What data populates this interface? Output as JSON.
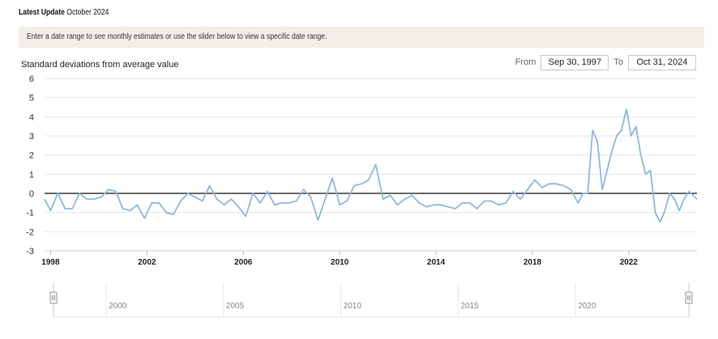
{
  "header": {
    "update_label": "Latest Update",
    "update_value": "October 2024",
    "notice": "Enter a date range to see monthly estimates or use the slider below to view a specific date range."
  },
  "range": {
    "from_label": "From",
    "from_value": "Sep 30, 1997",
    "to_label": "To",
    "to_value": "Oct 31, 2024"
  },
  "colors": {
    "line": "#8db8e3",
    "zero_line": "#111111",
    "grid": "#e6e6e6",
    "notice_bg": "#f2efe9"
  },
  "chart_data": {
    "type": "line",
    "ylabel": "Standard deviations from average value",
    "xlim": [
      1997.75,
      2024.83
    ],
    "ylim": [
      -3,
      6
    ],
    "yticks": [
      "-3",
      "-2",
      "-1",
      "0",
      "1",
      "2",
      "3",
      "4",
      "5",
      "6"
    ],
    "xticks": [
      {
        "value": 1998,
        "label": "1998"
      },
      {
        "value": 2002,
        "label": "2002"
      },
      {
        "value": 2006,
        "label": "2006"
      },
      {
        "value": 2010,
        "label": "2010"
      },
      {
        "value": 2014,
        "label": "2014"
      },
      {
        "value": 2018,
        "label": "2018"
      },
      {
        "value": 2022,
        "label": "2022"
      }
    ],
    "zero_line": 0,
    "grid": true,
    "series": [
      {
        "x": [
          1997.75,
          1998.0,
          1998.3,
          1998.6,
          1998.9,
          1999.2,
          1999.5,
          1999.8,
          2000.1,
          2000.4,
          2000.7,
          2001.0,
          2001.3,
          2001.6,
          2001.9,
          2002.2,
          2002.5,
          2002.8,
          2003.1,
          2003.4,
          2003.7,
          2004.0,
          2004.3,
          2004.6,
          2004.9,
          2005.2,
          2005.5,
          2005.8,
          2006.1,
          2006.4,
          2006.7,
          2007.0,
          2007.3,
          2007.6,
          2007.9,
          2008.2,
          2008.5,
          2008.8,
          2009.1,
          2009.4,
          2009.7,
          2010.0,
          2010.3,
          2010.6,
          2010.9,
          2011.2,
          2011.5,
          2011.8,
          2012.1,
          2012.4,
          2012.7,
          2013.0,
          2013.3,
          2013.6,
          2013.9,
          2014.2,
          2014.5,
          2014.8,
          2015.1,
          2015.4,
          2015.7,
          2016.0,
          2016.3,
          2016.6,
          2016.9,
          2017.2,
          2017.5,
          2017.8,
          2018.1,
          2018.4,
          2018.7,
          2019.0,
          2019.3,
          2019.6,
          2019.9,
          2020.1,
          2020.3,
          2020.5,
          2020.7,
          2020.9,
          2021.1,
          2021.3,
          2021.5,
          2021.7,
          2021.9,
          2022.1,
          2022.3,
          2022.5,
          2022.7,
          2022.9,
          2023.1,
          2023.3,
          2023.5,
          2023.7,
          2023.9,
          2024.1,
          2024.3,
          2024.5,
          2024.83
        ],
        "y": [
          -0.3,
          -0.9,
          0.0,
          -0.8,
          -0.8,
          0.0,
          -0.3,
          -0.3,
          -0.2,
          0.2,
          0.1,
          -0.8,
          -0.9,
          -0.6,
          -1.3,
          -0.5,
          -0.5,
          -1.0,
          -1.1,
          -0.4,
          0.0,
          -0.2,
          -0.4,
          0.4,
          -0.3,
          -0.6,
          -0.3,
          -0.7,
          -1.2,
          0.0,
          -0.5,
          0.1,
          -0.6,
          -0.5,
          -0.5,
          -0.4,
          0.2,
          -0.2,
          -1.4,
          -0.3,
          0.8,
          -0.6,
          -0.4,
          0.4,
          0.5,
          0.7,
          1.5,
          -0.3,
          -0.1,
          -0.6,
          -0.3,
          -0.1,
          -0.5,
          -0.7,
          -0.6,
          -0.6,
          -0.7,
          -0.8,
          -0.5,
          -0.5,
          -0.8,
          -0.4,
          -0.4,
          -0.6,
          -0.5,
          0.1,
          -0.3,
          0.2,
          0.7,
          0.3,
          0.5,
          0.5,
          0.4,
          0.2,
          -0.5,
          0.0,
          0.0,
          3.3,
          2.7,
          0.2,
          1.2,
          2.2,
          3.0,
          3.3,
          4.4,
          3.0,
          3.5,
          2.0,
          1.0,
          1.2,
          -1.0,
          -1.5,
          -0.9,
          0.0,
          -0.3,
          -0.9,
          -0.3,
          0.1,
          -0.3
        ]
      }
    ]
  },
  "navigator": {
    "labels": [
      {
        "value": 2000,
        "label": "2000"
      },
      {
        "value": 2005,
        "label": "2005"
      },
      {
        "value": 2010,
        "label": "2010"
      },
      {
        "value": 2015,
        "label": "2015"
      },
      {
        "value": 2020,
        "label": "2020"
      }
    ]
  }
}
